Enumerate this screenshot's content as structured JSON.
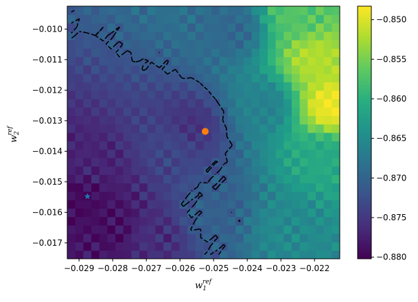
{
  "chart_data": {
    "type": "heatmap",
    "title": "",
    "xlabel": "w",
    "xlabel_sub": "1",
    "xlabel_sup": "ref",
    "ylabel": "w",
    "ylabel_sub": "2",
    "ylabel_sup": "ref",
    "xlim": [
      -0.02935,
      -0.02125
    ],
    "ylim": [
      -0.01752,
      -0.00925
    ],
    "x_ticks": [
      -0.029,
      -0.028,
      -0.027,
      -0.026,
      -0.025,
      -0.024,
      -0.023,
      -0.022
    ],
    "x_tick_labels": [
      "−0.029",
      "−0.028",
      "−0.027",
      "−0.026",
      "−0.025",
      "−0.024",
      "−0.023",
      "−0.022"
    ],
    "y_ticks": [
      -0.01,
      -0.011,
      -0.012,
      -0.013,
      -0.014,
      -0.015,
      -0.016,
      -0.017
    ],
    "y_tick_labels": [
      "−0.010",
      "−0.011",
      "−0.012",
      "−0.013",
      "−0.014",
      "−0.015",
      "−0.016",
      "−0.017"
    ],
    "colorbar": {
      "colormap": "viridis",
      "vmin": -0.8802,
      "vmax": -0.8483,
      "ticks": [
        -0.85,
        -0.855,
        -0.86,
        -0.865,
        -0.87,
        -0.875,
        -0.88
      ],
      "tick_labels": [
        "−0.850",
        "−0.855",
        "−0.860",
        "−0.865",
        "−0.870",
        "−0.875",
        "−0.880"
      ]
    },
    "contour_level": -0.8715,
    "contour_style": "dashed black",
    "grid": false,
    "field_samples": [
      {
        "x": -0.029,
        "y": -0.0155,
        "value": -0.8795
      },
      {
        "x": -0.0287,
        "y": -0.0145,
        "value": -0.877
      },
      {
        "x": -0.028,
        "y": -0.0165,
        "value": -0.879
      },
      {
        "x": -0.0268,
        "y": -0.0168,
        "value": -0.876
      },
      {
        "x": -0.0262,
        "y": -0.0138,
        "value": -0.8735
      },
      {
        "x": -0.0257,
        "y": -0.0132,
        "value": -0.8755
      },
      {
        "x": -0.025,
        "y": -0.016,
        "value": -0.8705
      },
      {
        "x": -0.0245,
        "y": -0.01,
        "value": -0.8695
      },
      {
        "x": -0.0235,
        "y": -0.0125,
        "value": -0.866
      },
      {
        "x": -0.0228,
        "y": -0.0165,
        "value": -0.865
      },
      {
        "x": -0.022,
        "y": -0.011,
        "value": -0.852
      },
      {
        "x": -0.0215,
        "y": -0.0125,
        "value": -0.849
      },
      {
        "x": -0.0218,
        "y": -0.0142,
        "value": -0.861
      },
      {
        "x": -0.0225,
        "y": -0.0095,
        "value": -0.857
      }
    ],
    "markers": [
      {
        "name": "optimum-point",
        "shape": "circle",
        "color": "#ff7f0e",
        "x": -0.02525,
        "y": -0.01335
      },
      {
        "name": "reference-star",
        "shape": "star",
        "color": "#1f77b4",
        "x": -0.02875,
        "y": -0.01548
      }
    ]
  }
}
